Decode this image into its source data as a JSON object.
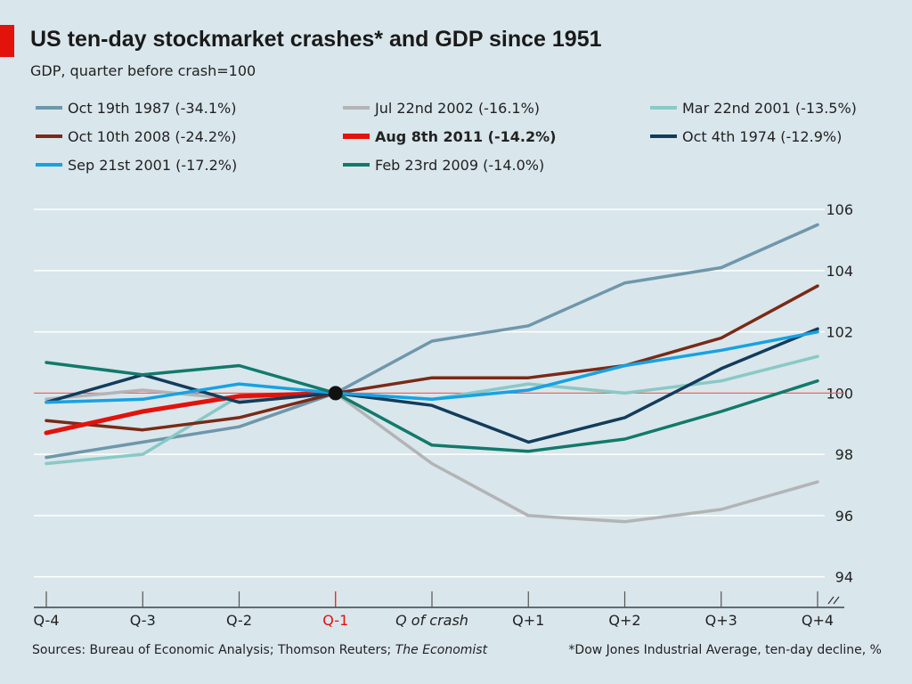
{
  "header": {
    "title": "US ten-day stockmarket crashes* and GDP since 1951",
    "subtitle": "GDP, quarter before crash=100"
  },
  "footer": {
    "sources_prefix": "Sources: Bureau of Economic Analysis; Thomson Reuters; ",
    "sources_publication": "The Economist",
    "note": "*Dow Jones Industrial Average, ten-day decline, %"
  },
  "colors": {
    "background": "#d9e6ec",
    "accent": "#e3120b",
    "gridline": "#ffffff",
    "reference_line": "#e56666",
    "tick_mark": "#555555"
  },
  "chart_data": {
    "type": "line",
    "categories": [
      "Q-4",
      "Q-3",
      "Q-2",
      "Q-1",
      "Q of crash",
      "Q+1",
      "Q+2",
      "Q+3",
      "Q+4"
    ],
    "highlighted_category": "Q-1",
    "ylim": [
      93,
      106.5
    ],
    "yticks": [
      94,
      96,
      98,
      100,
      102,
      104,
      106
    ],
    "y_axis_side": "right",
    "reference_line": 100,
    "axis_break": true,
    "grid": true,
    "legend_placement": "top",
    "marker": {
      "category": "Q-1",
      "value": 100
    },
    "series": [
      {
        "name": "Oct 19th 1987 (-34.1%)",
        "color": "#6f97ab",
        "bold": false,
        "values": [
          97.9,
          98.4,
          98.9,
          100.0,
          101.7,
          102.2,
          103.6,
          104.1,
          105.5
        ]
      },
      {
        "name": "Jul 22nd 2002 (-16.1%)",
        "color": "#b3b4b6",
        "bold": false,
        "values": [
          99.8,
          100.1,
          99.8,
          100.0,
          97.7,
          96.0,
          95.8,
          96.2,
          97.1
        ]
      },
      {
        "name": "Mar 22nd 2001 (-13.5%)",
        "color": "#89c9c6",
        "bold": false,
        "values": [
          97.7,
          98.0,
          99.9,
          100.0,
          99.8,
          100.3,
          100.0,
          100.4,
          101.2
        ]
      },
      {
        "name": "Oct 10th 2008 (-24.2%)",
        "color": "#7a2a16",
        "bold": false,
        "values": [
          99.1,
          98.8,
          99.2,
          100.0,
          100.5,
          100.5,
          100.9,
          101.8,
          103.5
        ]
      },
      {
        "name": "Aug 8th 2011 (-14.2%)",
        "color": "#e3120b",
        "bold": true,
        "values": [
          98.7,
          99.4,
          99.9,
          100.0,
          null,
          null,
          null,
          null,
          null
        ]
      },
      {
        "name": "Oct 4th 1974 (-12.9%)",
        "color": "#123c5b",
        "bold": false,
        "values": [
          99.7,
          100.6,
          99.7,
          100.0,
          99.6,
          98.4,
          99.2,
          100.8,
          102.1
        ]
      },
      {
        "name": "Sep 21st 2001 (-17.2%)",
        "color": "#17a2e3",
        "bold": false,
        "values": [
          99.7,
          99.8,
          100.3,
          100.0,
          99.8,
          100.1,
          100.9,
          101.4,
          102.0
        ]
      },
      {
        "name": "Feb 23rd 2009 (-14.0%)",
        "color": "#117a6b",
        "bold": false,
        "values": [
          101.0,
          100.6,
          100.9,
          100.0,
          98.3,
          98.1,
          98.5,
          99.4,
          100.4
        ]
      }
    ]
  }
}
